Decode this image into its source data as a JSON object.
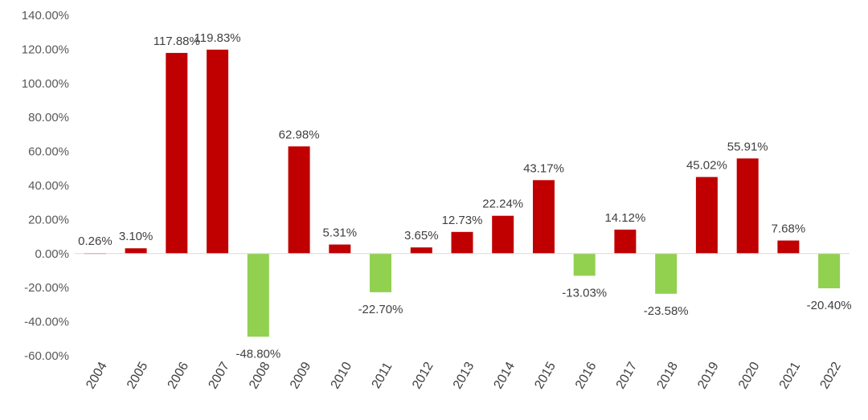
{
  "chart_data": {
    "type": "bar",
    "title": "",
    "xlabel": "",
    "ylabel": "",
    "ylim": [
      -60,
      140
    ],
    "ytick_step": 20,
    "ytick_labels": [
      "140.00%",
      "120.00%",
      "100.00%",
      "80.00%",
      "60.00%",
      "40.00%",
      "20.00%",
      "0.00%",
      "-20.00%",
      "-40.00%",
      "-60.00%"
    ],
    "grid": false,
    "legend": "none",
    "categories": [
      "2004",
      "2005",
      "2006",
      "2007",
      "2008",
      "2009",
      "2010",
      "2011",
      "2012",
      "2013",
      "2014",
      "2015",
      "2016",
      "2017",
      "2018",
      "2019",
      "2020",
      "2021",
      "2022"
    ],
    "values": [
      0.26,
      3.1,
      117.88,
      119.83,
      -48.8,
      62.98,
      5.31,
      -22.7,
      3.65,
      12.73,
      22.24,
      43.17,
      -13.03,
      14.12,
      -23.58,
      45.02,
      55.91,
      7.68,
      -20.4
    ],
    "value_labels": [
      "0.26%",
      "3.10%",
      "117.88%",
      "119.83%",
      "-48.80%",
      "62.98%",
      "5.31%",
      "-22.70%",
      "3.65%",
      "12.73%",
      "22.24%",
      "43.17%",
      "-13.03%",
      "14.12%",
      "-23.58%",
      "45.02%",
      "55.91%",
      "7.68%",
      "-20.40%"
    ],
    "colors": {
      "positive": "#c00000",
      "negative": "#92d050",
      "axis": "#d9d9d9"
    }
  }
}
